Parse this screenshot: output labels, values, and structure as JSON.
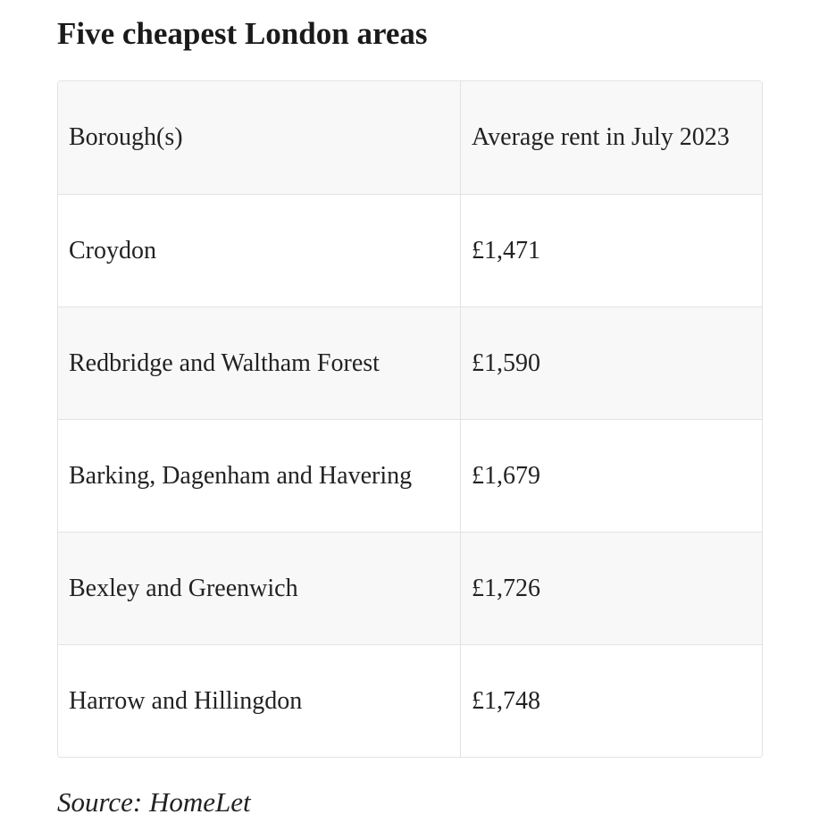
{
  "title": "Five cheapest London areas",
  "table": {
    "headers": [
      "Borough(s)",
      "Average rent in July 2023"
    ],
    "rows": [
      [
        "Croydon",
        "£1,471"
      ],
      [
        "Redbridge and Waltham Forest",
        "£1,590"
      ],
      [
        "Barking, Dagenham and Havering",
        "£1,679"
      ],
      [
        "Bexley and Greenwich",
        "£1,726"
      ],
      [
        "Harrow and Hillingdon",
        "£1,748"
      ]
    ]
  },
  "source": "Source: HomeLet"
}
